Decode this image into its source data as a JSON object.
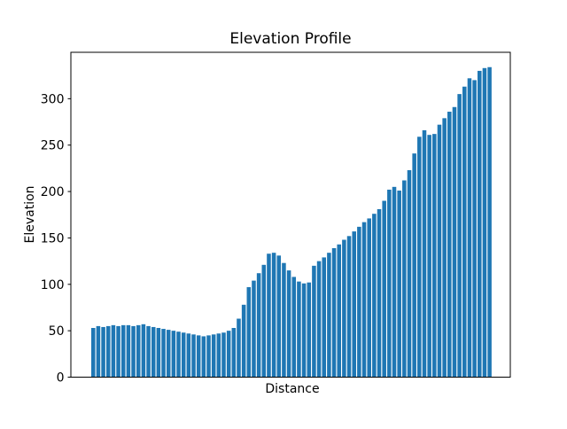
{
  "chart_data": {
    "type": "bar",
    "title": "Elevation Profile",
    "xlabel": "Distance",
    "ylabel": "Elevation",
    "bar_color": "#1f77b4",
    "ylim": [
      0,
      350
    ],
    "yticks": [
      0,
      50,
      100,
      150,
      200,
      250,
      300
    ],
    "x_tick_labels": "none",
    "grid": "off",
    "legend": "none",
    "values": [
      53,
      55,
      54,
      55,
      56,
      55,
      56,
      56,
      55,
      56,
      57,
      55,
      54,
      53,
      52,
      51,
      50,
      49,
      48,
      47,
      46,
      45,
      44,
      45,
      46,
      47,
      48,
      50,
      53,
      63,
      78,
      97,
      104,
      112,
      121,
      133,
      134,
      131,
      123,
      115,
      108,
      103,
      101,
      102,
      120,
      125,
      129,
      134,
      139,
      143,
      148,
      152,
      157,
      162,
      167,
      171,
      176,
      181,
      190,
      202,
      205,
      201,
      212,
      223,
      241,
      259,
      266,
      261,
      262,
      272,
      279,
      286,
      291,
      305,
      313,
      322,
      320,
      330,
      333,
      334
    ]
  }
}
